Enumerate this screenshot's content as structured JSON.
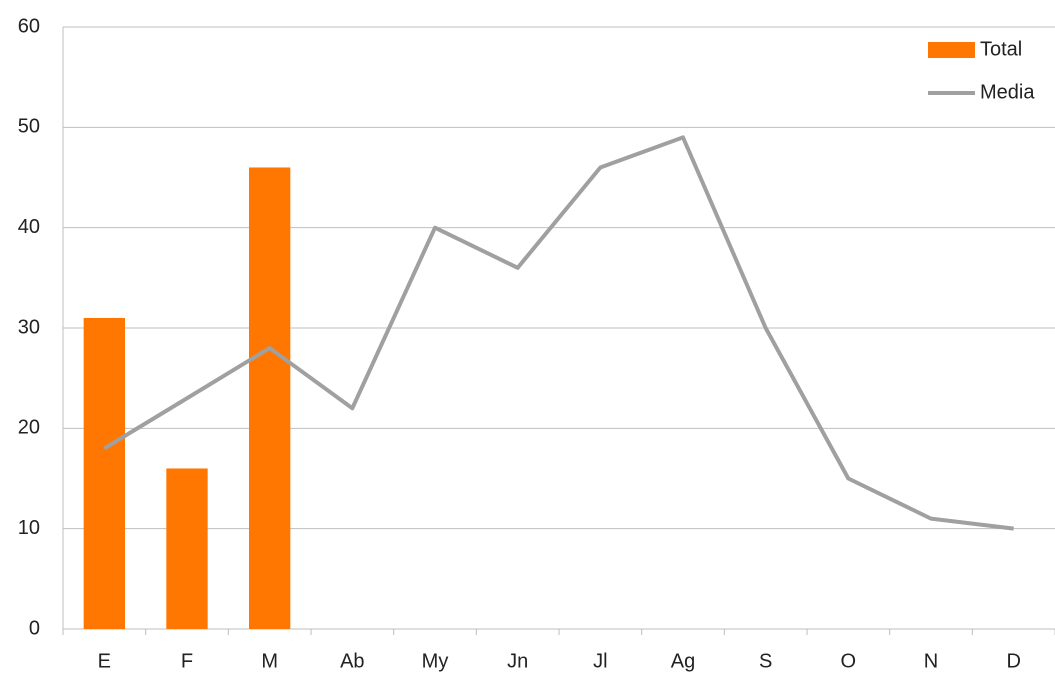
{
  "chart_data": {
    "type": "combo",
    "categories": [
      "E",
      "F",
      "M",
      "Ab",
      "My",
      "Jn",
      "Jl",
      "Ag",
      "S",
      "O",
      "N",
      "D"
    ],
    "series": [
      {
        "name": "Total",
        "type": "bar",
        "color": "#ff7700",
        "values": [
          31,
          16,
          46,
          null,
          null,
          null,
          null,
          null,
          null,
          null,
          null,
          null
        ]
      },
      {
        "name": "Media",
        "type": "line",
        "color": "#a0a0a0",
        "values": [
          18,
          23,
          28,
          22,
          40,
          36,
          46,
          49,
          30,
          15,
          11,
          10
        ]
      }
    ],
    "ylim": [
      0,
      60
    ],
    "yticks": [
      0,
      10,
      20,
      30,
      40,
      50,
      60
    ],
    "grid": true,
    "legend": "upper right"
  }
}
